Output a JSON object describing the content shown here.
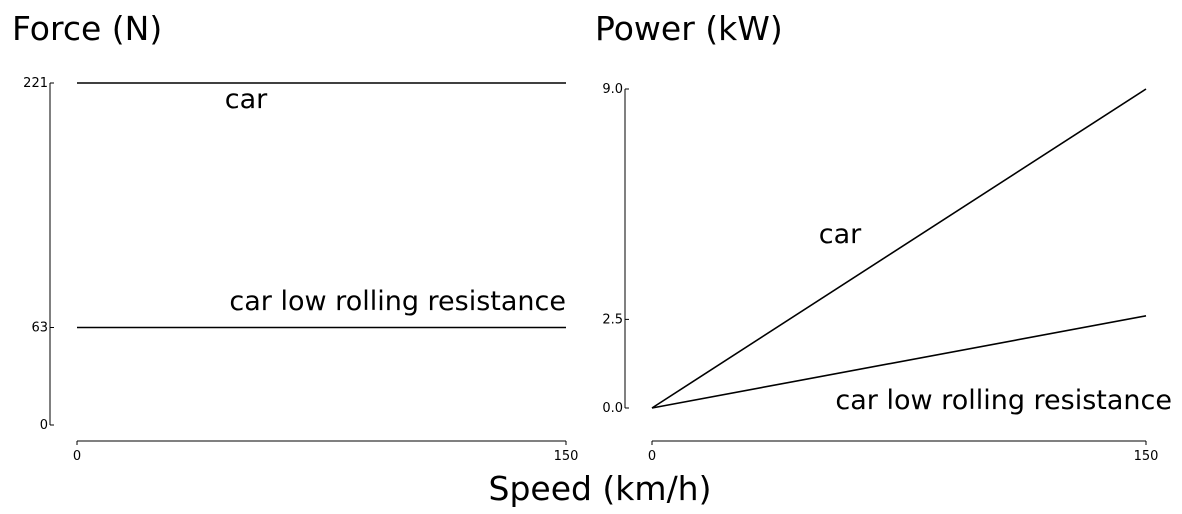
{
  "shared_xlabel": "Speed (km/h)",
  "chart_data": [
    {
      "type": "line",
      "title": "Force (N)",
      "xlabel": "Speed (km/h)",
      "ylabel": "Force (N)",
      "xlim": [
        0,
        150
      ],
      "ylim": [
        0,
        221
      ],
      "xticks": [
        0,
        150
      ],
      "yticks": [
        0,
        63,
        221
      ],
      "grid": false,
      "legend": "inline",
      "series": [
        {
          "name": "car",
          "x": [
            0,
            150
          ],
          "y": [
            221,
            221
          ]
        },
        {
          "name": "car low rolling resistance",
          "x": [
            0,
            150
          ],
          "y": [
            63,
            63
          ]
        }
      ]
    },
    {
      "type": "line",
      "title": "Power (kW)",
      "xlabel": "Speed (km/h)",
      "ylabel": "Power (kW)",
      "xlim": [
        0,
        150
      ],
      "ylim": [
        0,
        9.0
      ],
      "xticks": [
        0,
        150
      ],
      "yticks": [
        0.0,
        2.5,
        9.0
      ],
      "ytick_labels": [
        "0.0",
        "2.5",
        "9.0"
      ],
      "grid": false,
      "legend": "inline",
      "series": [
        {
          "name": "car",
          "x": [
            0,
            150
          ],
          "y": [
            0,
            9.0
          ]
        },
        {
          "name": "car low rolling resistance",
          "x": [
            0,
            150
          ],
          "y": [
            0,
            2.6
          ]
        }
      ]
    }
  ]
}
